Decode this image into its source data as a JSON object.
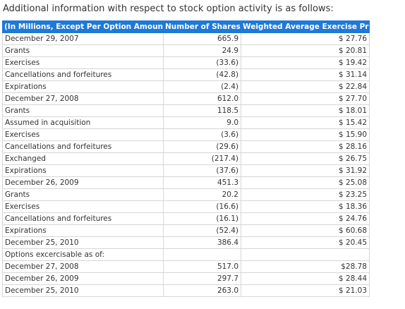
{
  "caption": "Additional information with respect to stock option activity is as follows:",
  "table": {
    "headers": [
      "(In Millions, Except Per Option Amounts)",
      "Number of Shares",
      "Weighted Average Exercise Price"
    ],
    "rows": [
      [
        "December 29, 2007",
        "665.9",
        "$ 27.76"
      ],
      [
        "Grants",
        "24.9",
        "$ 20.81"
      ],
      [
        "Exercises",
        "(33.6)",
        "$ 19.42"
      ],
      [
        "Cancellations and forfeitures",
        "(42.8)",
        "$ 31.14"
      ],
      [
        "Expirations",
        "(2.4)",
        "$ 22.84"
      ],
      [
        "December 27, 2008",
        "612.0",
        "$ 27.70"
      ],
      [
        "Grants",
        "118.5",
        "$ 18.01"
      ],
      [
        "Assumed in acquisition",
        "9.0",
        "$ 15.42"
      ],
      [
        "Exercises",
        "(3.6)",
        "$ 15.90"
      ],
      [
        "Cancellations and forfeitures",
        "(29.6)",
        "$ 28.16"
      ],
      [
        "Exchanged",
        "(217.4)",
        "$ 26.75"
      ],
      [
        "Expirations",
        "(37.6)",
        "$ 31.92"
      ],
      [
        "December 26, 2009",
        "451.3",
        "$ 25.08"
      ],
      [
        "Grants",
        "20.2",
        "$ 23.25"
      ],
      [
        "Exercises",
        "(16.6)",
        "$ 18.36"
      ],
      [
        "Cancellations and forfeitures",
        "(16.1)",
        "$ 24.76"
      ],
      [
        "Expirations",
        "(52.4)",
        "$ 60.68"
      ],
      [
        "December 25, 2010",
        "386.4",
        "$ 20.45"
      ],
      [
        "Options excercisable as of:",
        "",
        ""
      ],
      [
        "December 27, 2008",
        "517.0",
        "$28.78"
      ],
      [
        "December 26, 2009",
        "297.7",
        "$ 28.44"
      ],
      [
        "December 25, 2010",
        "263.0",
        "$ 21.03"
      ]
    ]
  },
  "colors": {
    "header_bg": "#1f79d6",
    "header_text": "#ffffff",
    "border": "#d6d6d6",
    "text": "#333333"
  }
}
